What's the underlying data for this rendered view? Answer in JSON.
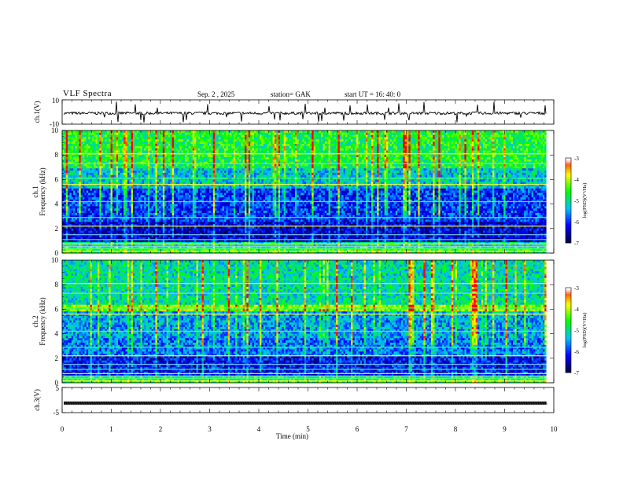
{
  "header": {
    "title": "VLF Spectra",
    "date": "Sep. 2 , 2025",
    "station": "station= GAK",
    "start_ut": "start UT = 16: 40: 0"
  },
  "colorbar": {
    "ticks": [
      "-3",
      "-4",
      "-5",
      "-6",
      "-7"
    ],
    "label": "log(PSD)(V²/Hz)",
    "stops": [
      "#ffffff",
      "#ff0000",
      "#ffff00",
      "#00ff00",
      "#00c0ff",
      "#0000ff",
      "#000040"
    ]
  },
  "chart_data": [
    {
      "type": "line",
      "panel": "ch1-waveform",
      "ylabel": "ch.1(V)",
      "ylim": [
        -10,
        10
      ],
      "yticks": [
        "10",
        "-10"
      ],
      "xlim": [
        0,
        10
      ],
      "description_values": "noisy waveform, baseline about -1 V with impulsive spikes"
    },
    {
      "type": "heatmap",
      "panel": "ch1-spectrogram",
      "ylabel": "ch.1 Frequency (kHz)",
      "ylim": [
        0,
        10
      ],
      "yticks": [
        "0",
        "2",
        "4",
        "6",
        "8",
        "10"
      ],
      "xlim": [
        0,
        10
      ],
      "value_range": [
        -7,
        -3
      ],
      "bands": [
        {
          "from_khz": 0.0,
          "to_khz": 0.6,
          "level": -4.6
        },
        {
          "from_khz": 0.6,
          "to_khz": 1.0,
          "level": -5.2
        },
        {
          "from_khz": 1.0,
          "to_khz": 2.6,
          "level": -6.4
        },
        {
          "from_khz": 2.6,
          "to_khz": 5.2,
          "level": -6.0
        },
        {
          "from_khz": 5.2,
          "to_khz": 7.0,
          "level": -5.3
        },
        {
          "from_khz": 7.0,
          "to_khz": 10.0,
          "level": -4.7
        }
      ]
    },
    {
      "type": "heatmap",
      "panel": "ch2-spectrogram",
      "ylabel": "ch.2 Frequency (kHz)",
      "ylim": [
        0,
        10
      ],
      "yticks": [
        "0",
        "2",
        "4",
        "6",
        "8",
        "10"
      ],
      "xlim": [
        0,
        10
      ],
      "value_range": [
        -7,
        -3
      ],
      "bands": [
        {
          "from_khz": 0.0,
          "to_khz": 0.6,
          "level": -4.7
        },
        {
          "from_khz": 0.6,
          "to_khz": 2.2,
          "level": -6.2
        },
        {
          "from_khz": 2.2,
          "to_khz": 3.6,
          "level": -5.7
        },
        {
          "from_khz": 3.6,
          "to_khz": 5.8,
          "level": -5.5
        },
        {
          "from_khz": 5.8,
          "to_khz": 6.4,
          "level": -4.2
        },
        {
          "from_khz": 6.4,
          "to_khz": 10.0,
          "level": -5.1
        }
      ]
    },
    {
      "type": "line",
      "panel": "ch3-waveform",
      "ylabel": "ch.3(V)",
      "ylim": [
        -5,
        5
      ],
      "yticks": [
        "5",
        "-5"
      ],
      "xlim": [
        0,
        10
      ],
      "constant_value": -1.2
    }
  ],
  "xaxis": {
    "label": "Time (min)",
    "ticks": [
      "0",
      "1",
      "2",
      "3",
      "4",
      "5",
      "6",
      "7",
      "8",
      "9",
      "10"
    ],
    "range": [
      0,
      10
    ]
  }
}
